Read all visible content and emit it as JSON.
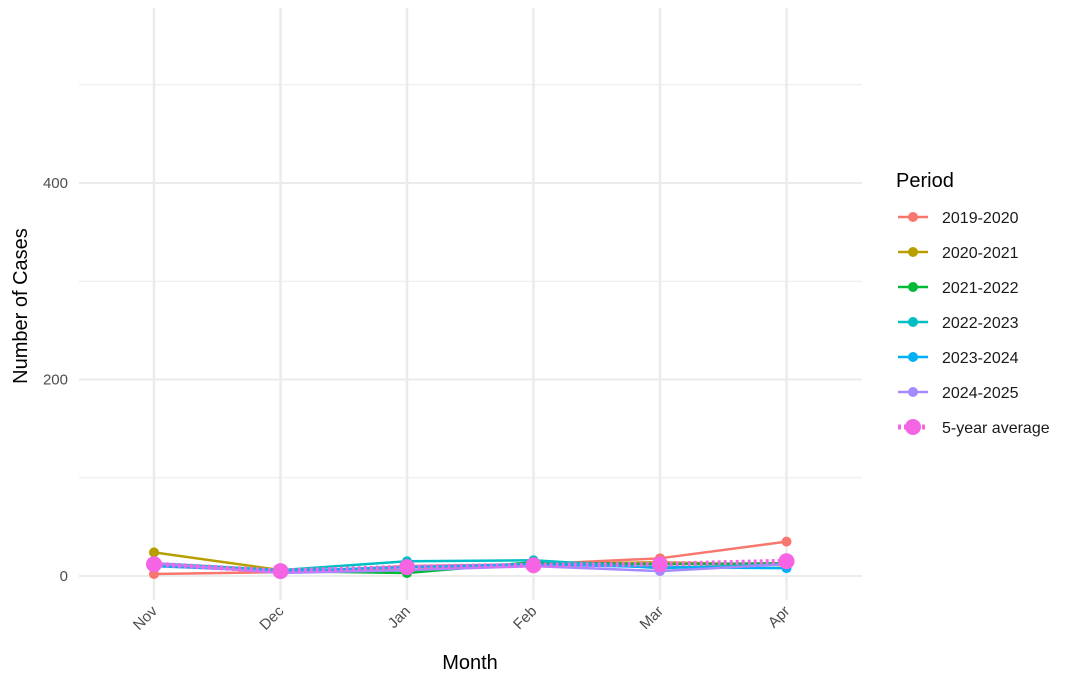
{
  "chart_data": {
    "type": "line",
    "title": "",
    "xlabel": "Month",
    "ylabel": "Number of Cases",
    "categories": [
      "Nov",
      "Dec",
      "Jan",
      "Feb",
      "Mar",
      "Apr"
    ],
    "yticks": [
      0,
      200,
      400
    ],
    "ylim": [
      -20,
      520
    ],
    "grid": true,
    "legend": {
      "title": "Period",
      "position": "right"
    },
    "series": [
      {
        "name": "2019-2020",
        "color": "#F8766D",
        "style": "solid",
        "values": [
          2,
          4,
          10,
          12,
          18,
          35
        ]
      },
      {
        "name": "2020-2021",
        "color": "#B79F00",
        "style": "solid",
        "values": [
          24,
          6,
          6,
          12,
          14,
          11
        ]
      },
      {
        "name": "2021-2022",
        "color": "#00BA38",
        "style": "solid",
        "values": [
          12,
          5,
          3,
          14,
          12,
          13
        ]
      },
      {
        "name": "2022-2023",
        "color": "#00BFC4",
        "style": "solid",
        "values": [
          13,
          6,
          15,
          16,
          8,
          12
        ]
      },
      {
        "name": "2023-2024",
        "color": "#00B0F6",
        "style": "solid",
        "values": [
          10,
          5,
          9,
          12,
          9,
          8
        ]
      },
      {
        "name": "2024-2025",
        "color": "#A58AFF",
        "style": "solid",
        "values": [
          13,
          3,
          6,
          10,
          5,
          12
        ]
      },
      {
        "name": "5-year average",
        "color": "#F564E3",
        "style": "dotted",
        "values": [
          12,
          5,
          9,
          11,
          12,
          15
        ]
      }
    ]
  }
}
